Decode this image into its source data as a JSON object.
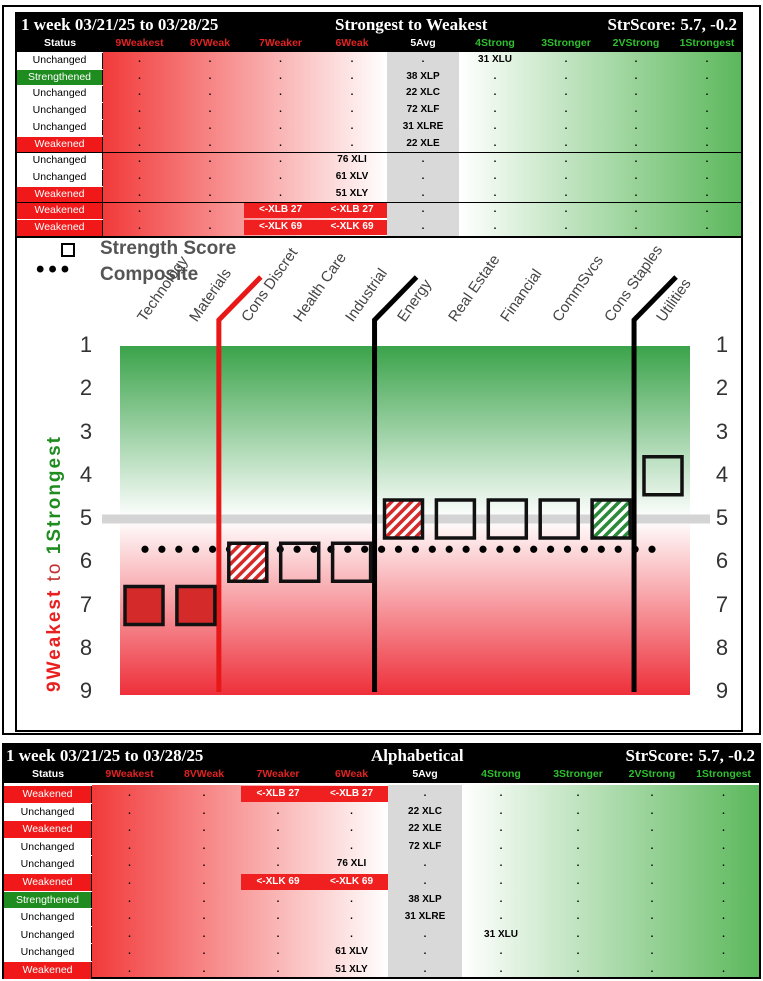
{
  "columns": [
    {
      "label": "Status",
      "color": "#ffffff"
    },
    {
      "label": "9Weakest",
      "color": "#e22222"
    },
    {
      "label": "8VWeak",
      "color": "#e22222"
    },
    {
      "label": "7Weaker",
      "color": "#e22222"
    },
    {
      "label": "6Weak",
      "color": "#e22222"
    },
    {
      "label": "5Avg",
      "color": "#ffffff"
    },
    {
      "label": "4Strong",
      "color": "#2fbf2f"
    },
    {
      "label": "3Stronger",
      "color": "#2fbf2f"
    },
    {
      "label": "2VStrong",
      "color": "#2fbf2f"
    },
    {
      "label": "1Strongest",
      "color": "#2fbf2f"
    }
  ],
  "top_table": {
    "period": "1 week 03/21/25 to 03/28/25",
    "title": "Strongest to Weakest",
    "strscore": "StrScore: 5.7, -0.2",
    "rows": [
      {
        "status": "Unchanged",
        "cells": [
          ".",
          ".",
          ".",
          ".",
          ".",
          "31 XLU",
          ".",
          ".",
          "."
        ]
      },
      {
        "status": "Strengthened",
        "cells": [
          ".",
          ".",
          ".",
          ".",
          "38 XLP",
          ".",
          ".",
          ".",
          "."
        ]
      },
      {
        "status": "Unchanged",
        "cells": [
          ".",
          ".",
          ".",
          ".",
          "22 XLC",
          ".",
          ".",
          ".",
          "."
        ]
      },
      {
        "status": "Unchanged",
        "cells": [
          ".",
          ".",
          ".",
          ".",
          "72 XLF",
          ".",
          ".",
          ".",
          "."
        ]
      },
      {
        "status": "Unchanged",
        "cells": [
          ".",
          ".",
          ".",
          ".",
          "31 XLRE",
          ".",
          ".",
          ".",
          "."
        ]
      },
      {
        "status": "Weakened",
        "cells": [
          ".",
          ".",
          ".",
          ".",
          "22 XLE",
          ".",
          ".",
          ".",
          "."
        ]
      },
      {
        "status": "Unchanged",
        "cells": [
          ".",
          ".",
          ".",
          "76 XLI",
          ".",
          ".",
          ".",
          ".",
          "."
        ]
      },
      {
        "status": "Unchanged",
        "cells": [
          ".",
          ".",
          ".",
          "61 XLV",
          ".",
          ".",
          ".",
          ".",
          "."
        ]
      },
      {
        "status": "Weakened",
        "cells": [
          ".",
          ".",
          ".",
          "51 XLY",
          ".",
          ".",
          ".",
          ".",
          "."
        ]
      },
      {
        "status": "Weakened",
        "cells": [
          ".",
          ".",
          "<-XLB 27",
          "<-XLB 27",
          ".",
          ".",
          ".",
          ".",
          "."
        ]
      },
      {
        "status": "Weakened",
        "cells": [
          ".",
          ".",
          "<-XLK 69",
          "<-XLK 69",
          ".",
          ".",
          ".",
          ".",
          "."
        ]
      }
    ]
  },
  "bottom_table": {
    "period": "1 week 03/21/25 to 03/28/25",
    "title": "Alphabetical",
    "strscore": "StrScore: 5.7, -0.2",
    "rows": [
      {
        "status": "Weakened",
        "cells": [
          ".",
          ".",
          "<-XLB 27",
          "<-XLB 27",
          ".",
          ".",
          ".",
          ".",
          "."
        ]
      },
      {
        "status": "Unchanged",
        "cells": [
          ".",
          ".",
          ".",
          ".",
          "22 XLC",
          ".",
          ".",
          ".",
          "."
        ]
      },
      {
        "status": "Weakened",
        "cells": [
          ".",
          ".",
          ".",
          ".",
          "22 XLE",
          ".",
          ".",
          ".",
          "."
        ]
      },
      {
        "status": "Unchanged",
        "cells": [
          ".",
          ".",
          ".",
          ".",
          "72 XLF",
          ".",
          ".",
          ".",
          "."
        ]
      },
      {
        "status": "Unchanged",
        "cells": [
          ".",
          ".",
          ".",
          "76 XLI",
          ".",
          ".",
          ".",
          ".",
          "."
        ]
      },
      {
        "status": "Weakened",
        "cells": [
          ".",
          ".",
          "<-XLK 69",
          "<-XLK 69",
          ".",
          ".",
          ".",
          ".",
          "."
        ]
      },
      {
        "status": "Strengthened",
        "cells": [
          ".",
          ".",
          ".",
          ".",
          "38 XLP",
          ".",
          ".",
          ".",
          "."
        ]
      },
      {
        "status": "Unchanged",
        "cells": [
          ".",
          ".",
          ".",
          ".",
          "31 XLRE",
          ".",
          ".",
          ".",
          "."
        ]
      },
      {
        "status": "Unchanged",
        "cells": [
          ".",
          ".",
          ".",
          ".",
          ".",
          "31 XLU",
          ".",
          ".",
          "."
        ]
      },
      {
        "status": "Unchanged",
        "cells": [
          ".",
          ".",
          ".",
          "61 XLV",
          ".",
          ".",
          ".",
          ".",
          "."
        ]
      },
      {
        "status": "Weakened",
        "cells": [
          ".",
          ".",
          ".",
          "51 XLY",
          ".",
          ".",
          ".",
          ".",
          "."
        ]
      }
    ]
  },
  "chart_data": {
    "type": "scatter",
    "legend": [
      "Strength Score",
      "Composite"
    ],
    "categories": [
      "Technology",
      "Materials",
      "Cons Discret",
      "Health Care",
      "Industrial",
      "Energy",
      "Real Estate",
      "Financial",
      "CommSvcs",
      "Cons Staples",
      "Utilities"
    ],
    "strength_score": [
      7,
      7,
      6,
      6,
      6,
      5,
      5,
      5,
      5,
      5,
      4
    ],
    "box_style": [
      "filled",
      "filled",
      "hatched-red",
      "open",
      "open",
      "hatched-red",
      "open",
      "open",
      "open",
      "hatched-green",
      "open"
    ],
    "composite": 5.7,
    "average_line": 5,
    "y_ticks": [
      1,
      2,
      3,
      4,
      5,
      6,
      7,
      8,
      9
    ],
    "ylim": [
      1,
      9
    ],
    "y_inverted": true,
    "ylabel_weak": "9Weakest",
    "ylabel_to": "to",
    "ylabel_strong": "1Strongest",
    "colors": {
      "strong": "#2e9e3a",
      "weak": "#e8232d",
      "filled_box": "#d42a2a",
      "avg_line": "#d4d4d4",
      "divider_red": "#e81818",
      "divider_black": "#000000"
    }
  }
}
